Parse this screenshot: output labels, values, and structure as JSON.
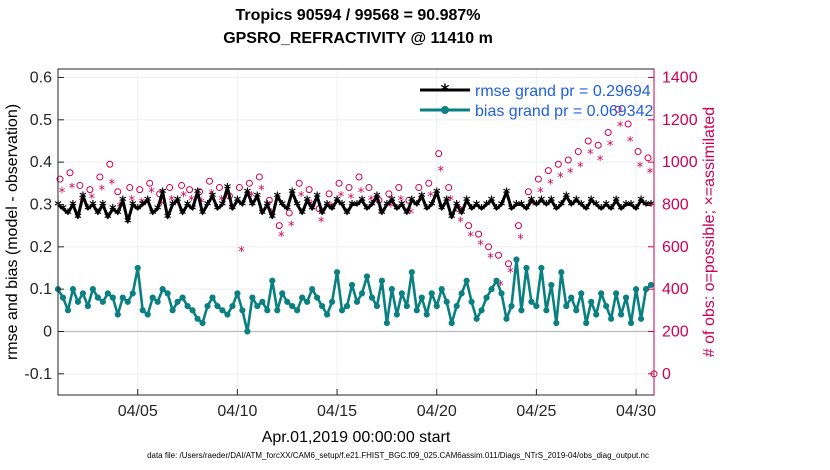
{
  "chart_data": {
    "type": "line",
    "title_line1": "Tropics 90594 / 99568 = 90.987%",
    "title_line2": "GPSRO_REFRACTIVITY @ 11410 m",
    "xlabel": "Apr.01,2019 00:00:00 start",
    "ylabel_left": "rmse and bias (model - observation)",
    "ylabel_right": "# of obs: o=possible; ×=assimilated",
    "footnote": "data file: /Users/raeder/DAI/ATM_forcXX/CAM6_setup/f.e21.FHIST_BGC.f09_025.CAM6assim.011/Diags_NTrS_2019-04/obs_diag_output.nc",
    "xlim": [
      1.0,
      30.9
    ],
    "ylim_left": [
      -0.15,
      0.62
    ],
    "ylim_right": [
      -100,
      1440
    ],
    "x_ticks": [
      5,
      10,
      15,
      20,
      25,
      30
    ],
    "x_tick_labels": [
      "04/05",
      "04/10",
      "04/15",
      "04/20",
      "04/25",
      "04/30"
    ],
    "y_ticks_left": [
      -0.1,
      0,
      0.1,
      0.2,
      0.3,
      0.4,
      0.5,
      0.6
    ],
    "y_tick_labels_left": [
      "-0.1",
      "0",
      "0.1",
      "0.2",
      "0.3",
      "0.4",
      "0.5",
      "0.6"
    ],
    "y_ticks_right": [
      0,
      200,
      400,
      600,
      800,
      1000,
      1200,
      1400
    ],
    "y_tick_labels_right": [
      "0",
      "200",
      "400",
      "600",
      "800",
      "1000",
      "1200",
      "1400"
    ],
    "colors": {
      "rmse": "#000000",
      "bias": "#0a8080",
      "obs": "#cc0055",
      "legend_text": "#1f5fe0",
      "zero_line": "#bbbbbb",
      "grid": "#eeeeee"
    },
    "series": [
      {
        "name": "rmse grand pr = 0.29694",
        "style": "line-star",
        "x": [
          1.0,
          1.25,
          1.5,
          1.75,
          2.0,
          2.25,
          2.5,
          2.75,
          3.0,
          3.25,
          3.5,
          3.75,
          4.0,
          4.25,
          4.5,
          4.75,
          5.0,
          5.25,
          5.5,
          5.75,
          6.0,
          6.25,
          6.5,
          6.75,
          7.0,
          7.25,
          7.5,
          7.75,
          8.0,
          8.25,
          8.5,
          8.75,
          9.0,
          9.25,
          9.5,
          9.75,
          10.0,
          10.25,
          10.5,
          10.75,
          11.0,
          11.25,
          11.5,
          11.75,
          12.0,
          12.25,
          12.5,
          12.75,
          13.0,
          13.25,
          13.5,
          13.75,
          14.0,
          14.25,
          14.5,
          14.75,
          15.0,
          15.25,
          15.5,
          15.75,
          16.0,
          16.25,
          16.5,
          16.75,
          17.0,
          17.25,
          17.5,
          17.75,
          18.0,
          18.25,
          18.5,
          18.75,
          19.0,
          19.25,
          19.5,
          19.75,
          20.0,
          20.25,
          20.5,
          20.75,
          21.0,
          21.25,
          21.5,
          21.75,
          22.0,
          22.25,
          22.5,
          22.75,
          23.0,
          23.25,
          23.5,
          23.75,
          24.0,
          24.25,
          24.5,
          24.75,
          25.0,
          25.25,
          25.5,
          25.75,
          26.0,
          26.25,
          26.5,
          26.75,
          27.0,
          27.25,
          27.5,
          27.75,
          28.0,
          28.25,
          28.5,
          28.75,
          29.0,
          29.25,
          29.5,
          29.75,
          30.0,
          30.25,
          30.5,
          30.75
        ],
        "values": [
          0.3,
          0.29,
          0.28,
          0.3,
          0.27,
          0.32,
          0.29,
          0.3,
          0.28,
          0.3,
          0.27,
          0.29,
          0.28,
          0.31,
          0.26,
          0.3,
          0.29,
          0.3,
          0.31,
          0.28,
          0.29,
          0.33,
          0.27,
          0.3,
          0.31,
          0.28,
          0.3,
          0.29,
          0.33,
          0.28,
          0.3,
          0.32,
          0.29,
          0.3,
          0.34,
          0.29,
          0.31,
          0.3,
          0.33,
          0.3,
          0.32,
          0.28,
          0.3,
          0.27,
          0.32,
          0.3,
          0.29,
          0.33,
          0.3,
          0.28,
          0.31,
          0.29,
          0.32,
          0.28,
          0.3,
          0.29,
          0.31,
          0.3,
          0.28,
          0.3,
          0.3,
          0.31,
          0.29,
          0.3,
          0.32,
          0.28,
          0.3,
          0.31,
          0.29,
          0.3,
          0.28,
          0.31,
          0.3,
          0.32,
          0.29,
          0.3,
          0.33,
          0.29,
          0.31,
          0.27,
          0.3,
          0.28,
          0.31,
          0.29,
          0.3,
          0.29,
          0.3,
          0.31,
          0.29,
          0.3,
          0.33,
          0.29,
          0.3,
          0.3,
          0.29,
          0.31,
          0.3,
          0.31,
          0.3,
          0.31,
          0.29,
          0.3,
          0.32,
          0.3,
          0.31,
          0.3,
          0.29,
          0.31,
          0.3,
          0.29,
          0.3,
          0.29,
          0.31,
          0.29,
          0.3,
          0.3,
          0.29,
          0.31,
          0.3,
          0.3
        ]
      },
      {
        "name": "bias grand pr = 0.069342",
        "style": "line-circle",
        "x": [
          1.0,
          1.25,
          1.5,
          1.75,
          2.0,
          2.25,
          2.5,
          2.75,
          3.0,
          3.25,
          3.5,
          3.75,
          4.0,
          4.25,
          4.5,
          4.75,
          5.0,
          5.25,
          5.5,
          5.75,
          6.0,
          6.25,
          6.5,
          6.75,
          7.0,
          7.25,
          7.5,
          7.75,
          8.0,
          8.25,
          8.5,
          8.75,
          9.0,
          9.25,
          9.5,
          9.75,
          10.0,
          10.25,
          10.5,
          10.75,
          11.0,
          11.25,
          11.5,
          11.75,
          12.0,
          12.25,
          12.5,
          12.75,
          13.0,
          13.25,
          13.5,
          13.75,
          14.0,
          14.25,
          14.5,
          14.75,
          15.0,
          15.25,
          15.5,
          15.75,
          16.0,
          16.25,
          16.5,
          16.75,
          17.0,
          17.25,
          17.5,
          17.75,
          18.0,
          18.25,
          18.5,
          18.75,
          19.0,
          19.25,
          19.5,
          19.75,
          20.0,
          20.25,
          20.5,
          20.75,
          21.0,
          21.25,
          21.5,
          21.75,
          22.0,
          22.25,
          22.5,
          22.75,
          23.0,
          23.25,
          23.5,
          23.75,
          24.0,
          24.25,
          24.5,
          24.75,
          25.0,
          25.25,
          25.5,
          25.75,
          26.0,
          26.25,
          26.5,
          26.75,
          27.0,
          27.25,
          27.5,
          27.75,
          28.0,
          28.25,
          28.5,
          28.75,
          29.0,
          29.25,
          29.5,
          29.75,
          30.0,
          30.25,
          30.5,
          30.75
        ],
        "values": [
          0.1,
          0.08,
          0.05,
          0.1,
          0.07,
          0.09,
          0.06,
          0.1,
          0.08,
          0.07,
          0.09,
          0.08,
          0.04,
          0.08,
          0.07,
          0.09,
          0.15,
          0.05,
          0.04,
          0.08,
          0.07,
          0.1,
          0.09,
          0.05,
          0.07,
          0.08,
          0.06,
          0.05,
          0.03,
          0.02,
          0.06,
          0.08,
          0.06,
          0.05,
          0.04,
          0.06,
          0.09,
          0.05,
          0.0,
          0.08,
          0.06,
          0.07,
          0.05,
          0.12,
          0.05,
          0.09,
          0.07,
          0.06,
          0.05,
          0.08,
          0.07,
          0.1,
          0.08,
          0.06,
          0.04,
          0.07,
          0.14,
          0.05,
          0.06,
          0.11,
          0.07,
          0.09,
          0.13,
          0.08,
          0.06,
          0.12,
          0.02,
          0.1,
          0.04,
          0.09,
          0.06,
          0.14,
          0.05,
          0.08,
          0.04,
          0.09,
          0.06,
          0.1,
          0.07,
          0.02,
          0.06,
          0.09,
          0.12,
          0.07,
          0.03,
          0.05,
          0.08,
          0.1,
          0.12,
          0.09,
          0.03,
          0.06,
          0.17,
          0.05,
          0.15,
          0.07,
          0.06,
          0.15,
          0.05,
          0.11,
          0.02,
          0.14,
          0.06,
          0.08,
          0.05,
          0.09,
          0.02,
          0.07,
          0.04,
          0.09,
          0.06,
          0.03,
          0.09,
          0.04,
          0.08,
          0.02,
          0.1,
          0.03,
          0.1,
          0.11
        ]
      },
      {
        "name": "possible",
        "style": "open-circle",
        "axis": "right",
        "x": [
          1.1,
          1.6,
          2.1,
          2.6,
          3.1,
          3.6,
          4.0,
          4.6,
          5.1,
          5.6,
          6.1,
          6.6,
          7.2,
          7.6,
          8.1,
          8.6,
          9.1,
          9.6,
          10.1,
          10.6,
          11.1,
          11.6,
          12.1,
          12.6,
          13.1,
          13.6,
          14.1,
          14.6,
          15.1,
          15.6,
          16.1,
          16.6,
          17.1,
          17.6,
          18.1,
          18.6,
          19.1,
          19.6,
          20.1,
          20.6,
          21.1,
          21.6,
          22.1,
          22.6,
          23.1,
          23.6,
          24.1,
          24.6,
          25.1,
          25.6,
          26.1,
          26.6,
          27.1,
          27.6,
          28.1,
          28.6,
          29.1,
          29.6,
          30.1,
          30.6
        ],
        "values": [
          920,
          950,
          890,
          870,
          930,
          990,
          860,
          880,
          870,
          900,
          850,
          880,
          890,
          870,
          860,
          910,
          880,
          840,
          880,
          900,
          930,
          820,
          700,
          760,
          900,
          870,
          780,
          850,
          900,
          880,
          930,
          880,
          820,
          850,
          880,
          820,
          880,
          900,
          1040,
          880,
          780,
          700,
          660,
          600,
          560,
          520,
          700,
          860,
          920,
          960,
          990,
          1010,
          1050,
          1100,
          1080,
          1140,
          1250,
          1180,
          1050,
          1020
        ]
      },
      {
        "name": "assimilated",
        "style": "asterisk",
        "axis": "right",
        "x": [
          1.2,
          1.7,
          2.2,
          2.7,
          3.2,
          3.7,
          4.1,
          4.7,
          5.2,
          5.7,
          6.2,
          6.7,
          7.3,
          7.7,
          8.2,
          8.7,
          9.2,
          9.7,
          10.2,
          10.7,
          11.2,
          11.7,
          12.2,
          12.7,
          13.2,
          13.7,
          14.2,
          14.7,
          15.2,
          15.7,
          16.2,
          16.7,
          17.2,
          17.7,
          18.2,
          18.7,
          19.2,
          19.7,
          20.2,
          20.7,
          21.2,
          21.7,
          22.2,
          22.7,
          23.2,
          23.7,
          24.2,
          24.7,
          25.2,
          25.7,
          26.2,
          26.7,
          27.2,
          27.7,
          28.2,
          28.7,
          29.2,
          29.7,
          30.2,
          30.7
        ],
        "values": [
          860,
          880,
          820,
          830,
          870,
          900,
          790,
          820,
          810,
          860,
          800,
          820,
          840,
          820,
          810,
          850,
          820,
          780,
          580,
          840,
          870,
          760,
          650,
          700,
          840,
          800,
          720,
          790,
          840,
          830,
          860,
          820,
          760,
          790,
          820,
          760,
          820,
          840,
          960,
          820,
          720,
          650,
          610,
          550,
          420,
          480,
          640,
          800,
          860,
          900,
          930,
          950,
          980,
          1040,
          1010,
          1080,
          1170,
          1100,
          980,
          950
        ]
      }
    ],
    "right_edge_circle": {
      "x": 30.9,
      "value": 0
    }
  }
}
